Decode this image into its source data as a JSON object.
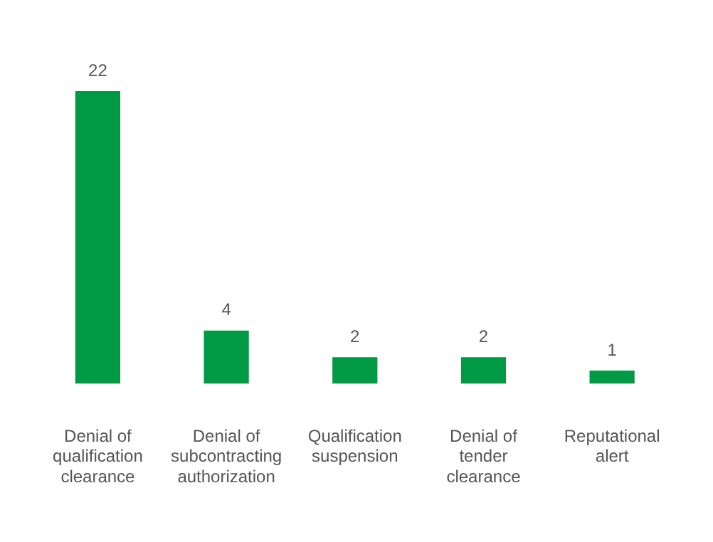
{
  "chart_data": {
    "type": "bar",
    "categories": [
      "Denial of qualification clearance",
      "Denial of subcontracting authorization",
      "Qualification suspension",
      "Denial of tender clearance",
      "Reputational alert"
    ],
    "values": [
      22,
      4,
      2,
      2,
      1
    ],
    "color": "#009a44",
    "data_labels": true,
    "grid": false,
    "legend": false
  }
}
